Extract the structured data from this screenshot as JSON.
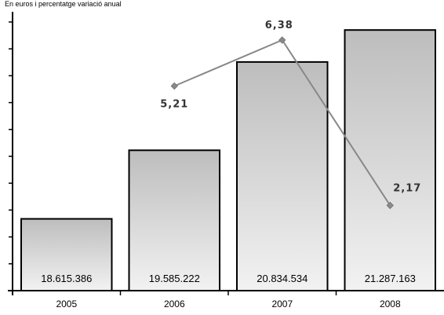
{
  "chart_data": {
    "type": "bar",
    "subtitle": "En euros i percentatge variació anual",
    "categories": [
      "2005",
      "2006",
      "2007",
      "2008"
    ],
    "series": [
      {
        "values": [
          18615386,
          19585222,
          20834534,
          21287163
        ],
        "value_labels": [
          "18.615.386",
          "19.585.222",
          "20.834.534",
          "21.287.163"
        ],
        "kind": "bar",
        "color": "#c4c4c4"
      },
      {
        "values": [
          null,
          5.21,
          6.38,
          2.17
        ],
        "value_labels": [
          "",
          "5,21",
          "6,38",
          "2,17"
        ],
        "kind": "line",
        "color": "#888888"
      }
    ],
    "bar_axis_range": [
      17600000,
      21600000
    ],
    "line_axis_range": [
      0,
      7.2
    ],
    "y_ticks_count": 10,
    "y_tick_labels_visible": false,
    "grid": false,
    "legend": "none"
  }
}
